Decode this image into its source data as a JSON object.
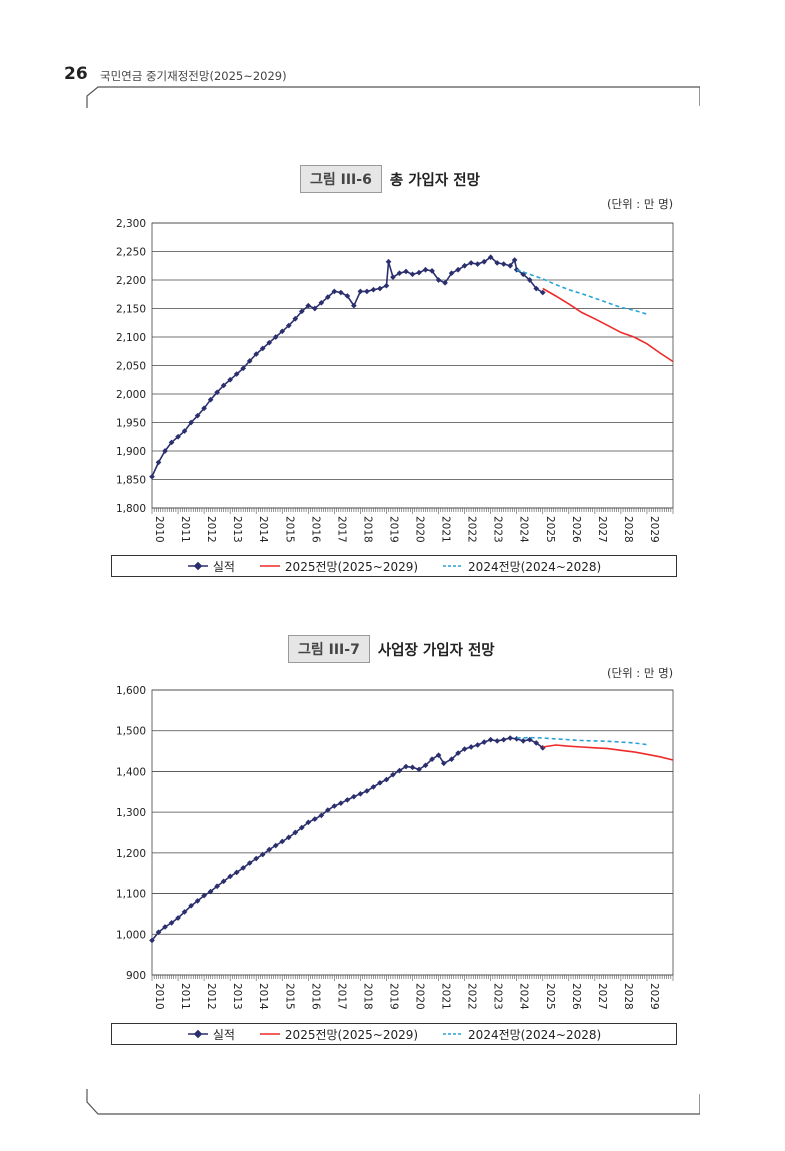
{
  "header": {
    "page_number": "26",
    "running_title": "국민연금 중기재정전망(2025~2029)"
  },
  "figures": [
    {
      "label": "그림 III-6",
      "title": "총 가입자 전망",
      "unit": "(단위 : 만 명)",
      "legend": {
        "actual": "실적",
        "proj2025": "2025전망(2025~2029)",
        "proj2024": "2024전망(2024~2028)"
      }
    },
    {
      "label": "그림 III-7",
      "title": "사업장 가입자 전망",
      "unit": "(단위 : 만 명)",
      "legend": {
        "actual": "실적",
        "proj2025": "2025전망(2025~2029)",
        "proj2024": "2024전망(2024~2028)"
      }
    }
  ],
  "colors": {
    "actual": "#2b2f6e",
    "proj2025": "#ee2a2a",
    "proj2024": "#29a3d6"
  },
  "chart_data": [
    {
      "type": "line",
      "x_axis": "year",
      "x_range": [
        2010,
        2030
      ],
      "x_ticks": [
        "2010",
        "2011",
        "2012",
        "2013",
        "2014",
        "2015",
        "2016",
        "2017",
        "2018",
        "2019",
        "2020",
        "2021",
        "2022",
        "2023",
        "2024",
        "2025",
        "2026",
        "2027",
        "2028",
        "2029"
      ],
      "ylim": [
        1800,
        2300
      ],
      "y_ticks": [
        "1,800",
        "1,850",
        "1,900",
        "1,950",
        "2,000",
        "2,050",
        "2,100",
        "2,150",
        "2,200",
        "2,250",
        "2,300"
      ],
      "grid": true,
      "legend_position": "bottom",
      "series": [
        {
          "name": "실적",
          "style": "line-marker",
          "points": [
            [
              2010.0,
              1855
            ],
            [
              2010.25,
              1880
            ],
            [
              2010.5,
              1900
            ],
            [
              2010.75,
              1915
            ],
            [
              2011.0,
              1925
            ],
            [
              2011.25,
              1935
            ],
            [
              2011.5,
              1950
            ],
            [
              2011.75,
              1962
            ],
            [
              2012.0,
              1975
            ],
            [
              2012.25,
              1990
            ],
            [
              2012.5,
              2003
            ],
            [
              2012.75,
              2015
            ],
            [
              2013.0,
              2025
            ],
            [
              2013.25,
              2035
            ],
            [
              2013.5,
              2045
            ],
            [
              2013.75,
              2058
            ],
            [
              2014.0,
              2070
            ],
            [
              2014.25,
              2080
            ],
            [
              2014.5,
              2090
            ],
            [
              2014.75,
              2100
            ],
            [
              2015.0,
              2110
            ],
            [
              2015.25,
              2120
            ],
            [
              2015.5,
              2132
            ],
            [
              2015.75,
              2145
            ],
            [
              2016.0,
              2155
            ],
            [
              2016.25,
              2150
            ],
            [
              2016.5,
              2160
            ],
            [
              2016.75,
              2170
            ],
            [
              2017.0,
              2180
            ],
            [
              2017.25,
              2178
            ],
            [
              2017.5,
              2172
            ],
            [
              2017.75,
              2155
            ],
            [
              2018.0,
              2180
            ],
            [
              2018.25,
              2180
            ],
            [
              2018.5,
              2183
            ],
            [
              2018.75,
              2185
            ],
            [
              2019.0,
              2190
            ],
            [
              2019.08,
              2232
            ],
            [
              2019.25,
              2205
            ],
            [
              2019.5,
              2212
            ],
            [
              2019.75,
              2215
            ],
            [
              2020.0,
              2210
            ],
            [
              2020.25,
              2213
            ],
            [
              2020.5,
              2218
            ],
            [
              2020.75,
              2216
            ],
            [
              2021.0,
              2200
            ],
            [
              2021.25,
              2195
            ],
            [
              2021.5,
              2212
            ],
            [
              2021.75,
              2218
            ],
            [
              2022.0,
              2225
            ],
            [
              2022.25,
              2230
            ],
            [
              2022.5,
              2228
            ],
            [
              2022.75,
              2232
            ],
            [
              2023.0,
              2240
            ],
            [
              2023.25,
              2230
            ],
            [
              2023.5,
              2228
            ],
            [
              2023.75,
              2225
            ],
            [
              2023.92,
              2235
            ],
            [
              2024.0,
              2218
            ],
            [
              2024.25,
              2210
            ],
            [
              2024.5,
              2200
            ],
            [
              2024.75,
              2185
            ],
            [
              2025.0,
              2178
            ]
          ]
        },
        {
          "name": "2025전망(2025~2029)",
          "style": "solid",
          "points": [
            [
              2025.0,
              2185
            ],
            [
              2025.5,
              2172
            ],
            [
              2026.0,
              2158
            ],
            [
              2026.5,
              2143
            ],
            [
              2027.0,
              2132
            ],
            [
              2027.5,
              2120
            ],
            [
              2028.0,
              2108
            ],
            [
              2028.5,
              2100
            ],
            [
              2029.0,
              2088
            ],
            [
              2029.5,
              2072
            ],
            [
              2030.0,
              2057
            ]
          ]
        },
        {
          "name": "2024전망(2024~2028)",
          "style": "dashed",
          "points": [
            [
              2024.0,
              2218
            ],
            [
              2024.5,
              2210
            ],
            [
              2025.0,
              2202
            ],
            [
              2025.5,
              2192
            ],
            [
              2026.0,
              2183
            ],
            [
              2026.5,
              2176
            ],
            [
              2027.0,
              2168
            ],
            [
              2027.5,
              2160
            ],
            [
              2028.0,
              2152
            ],
            [
              2028.5,
              2147
            ],
            [
              2029.0,
              2140
            ]
          ]
        }
      ]
    },
    {
      "type": "line",
      "x_axis": "year",
      "x_range": [
        2010,
        2030
      ],
      "x_ticks": [
        "2010",
        "2011",
        "2012",
        "2013",
        "2014",
        "2015",
        "2016",
        "2017",
        "2018",
        "2019",
        "2020",
        "2021",
        "2022",
        "2023",
        "2024",
        "2025",
        "2026",
        "2027",
        "2028",
        "2029"
      ],
      "ylim": [
        900,
        1600
      ],
      "y_ticks": [
        "900",
        "1,000",
        "1,100",
        "1,200",
        "1,300",
        "1,400",
        "1,500",
        "1,600"
      ],
      "grid": true,
      "legend_position": "bottom",
      "series": [
        {
          "name": "실적",
          "style": "line-marker",
          "points": [
            [
              2010.0,
              985
            ],
            [
              2010.25,
              1005
            ],
            [
              2010.5,
              1018
            ],
            [
              2010.75,
              1028
            ],
            [
              2011.0,
              1040
            ],
            [
              2011.25,
              1055
            ],
            [
              2011.5,
              1070
            ],
            [
              2011.75,
              1082
            ],
            [
              2012.0,
              1095
            ],
            [
              2012.25,
              1105
            ],
            [
              2012.5,
              1118
            ],
            [
              2012.75,
              1130
            ],
            [
              2013.0,
              1142
            ],
            [
              2013.25,
              1152
            ],
            [
              2013.5,
              1163
            ],
            [
              2013.75,
              1175
            ],
            [
              2014.0,
              1186
            ],
            [
              2014.25,
              1196
            ],
            [
              2014.5,
              1208
            ],
            [
              2014.75,
              1218
            ],
            [
              2015.0,
              1228
            ],
            [
              2015.25,
              1238
            ],
            [
              2015.5,
              1250
            ],
            [
              2015.75,
              1262
            ],
            [
              2016.0,
              1275
            ],
            [
              2016.25,
              1283
            ],
            [
              2016.5,
              1292
            ],
            [
              2016.75,
              1305
            ],
            [
              2017.0,
              1315
            ],
            [
              2017.25,
              1322
            ],
            [
              2017.5,
              1330
            ],
            [
              2017.75,
              1338
            ],
            [
              2018.0,
              1345
            ],
            [
              2018.25,
              1352
            ],
            [
              2018.5,
              1362
            ],
            [
              2018.75,
              1372
            ],
            [
              2019.0,
              1380
            ],
            [
              2019.25,
              1392
            ],
            [
              2019.5,
              1402
            ],
            [
              2019.75,
              1412
            ],
            [
              2020.0,
              1410
            ],
            [
              2020.25,
              1405
            ],
            [
              2020.5,
              1415
            ],
            [
              2020.75,
              1430
            ],
            [
              2021.0,
              1440
            ],
            [
              2021.2,
              1420
            ],
            [
              2021.5,
              1430
            ],
            [
              2021.75,
              1445
            ],
            [
              2022.0,
              1455
            ],
            [
              2022.25,
              1460
            ],
            [
              2022.5,
              1465
            ],
            [
              2022.75,
              1472
            ],
            [
              2023.0,
              1478
            ],
            [
              2023.25,
              1475
            ],
            [
              2023.5,
              1478
            ],
            [
              2023.75,
              1482
            ],
            [
              2024.0,
              1480
            ],
            [
              2024.25,
              1475
            ],
            [
              2024.5,
              1478
            ],
            [
              2024.75,
              1470
            ],
            [
              2025.0,
              1458
            ]
          ]
        },
        {
          "name": "2025전망(2025~2029)",
          "style": "solid",
          "points": [
            [
              2025.0,
              1460
            ],
            [
              2025.5,
              1465
            ],
            [
              2026.0,
              1462
            ],
            [
              2026.5,
              1460
            ],
            [
              2027.0,
              1458
            ],
            [
              2027.5,
              1456
            ],
            [
              2028.0,
              1452
            ],
            [
              2028.5,
              1448
            ],
            [
              2029.0,
              1442
            ],
            [
              2029.5,
              1436
            ],
            [
              2030.0,
              1428
            ]
          ]
        },
        {
          "name": "2024전망(2024~2028)",
          "style": "dashed",
          "points": [
            [
              2024.0,
              1482
            ],
            [
              2024.5,
              1483
            ],
            [
              2025.0,
              1482
            ],
            [
              2025.5,
              1480
            ],
            [
              2026.0,
              1478
            ],
            [
              2026.5,
              1476
            ],
            [
              2027.0,
              1475
            ],
            [
              2027.5,
              1474
            ],
            [
              2028.0,
              1472
            ],
            [
              2028.5,
              1470
            ],
            [
              2029.0,
              1466
            ]
          ]
        }
      ]
    }
  ]
}
